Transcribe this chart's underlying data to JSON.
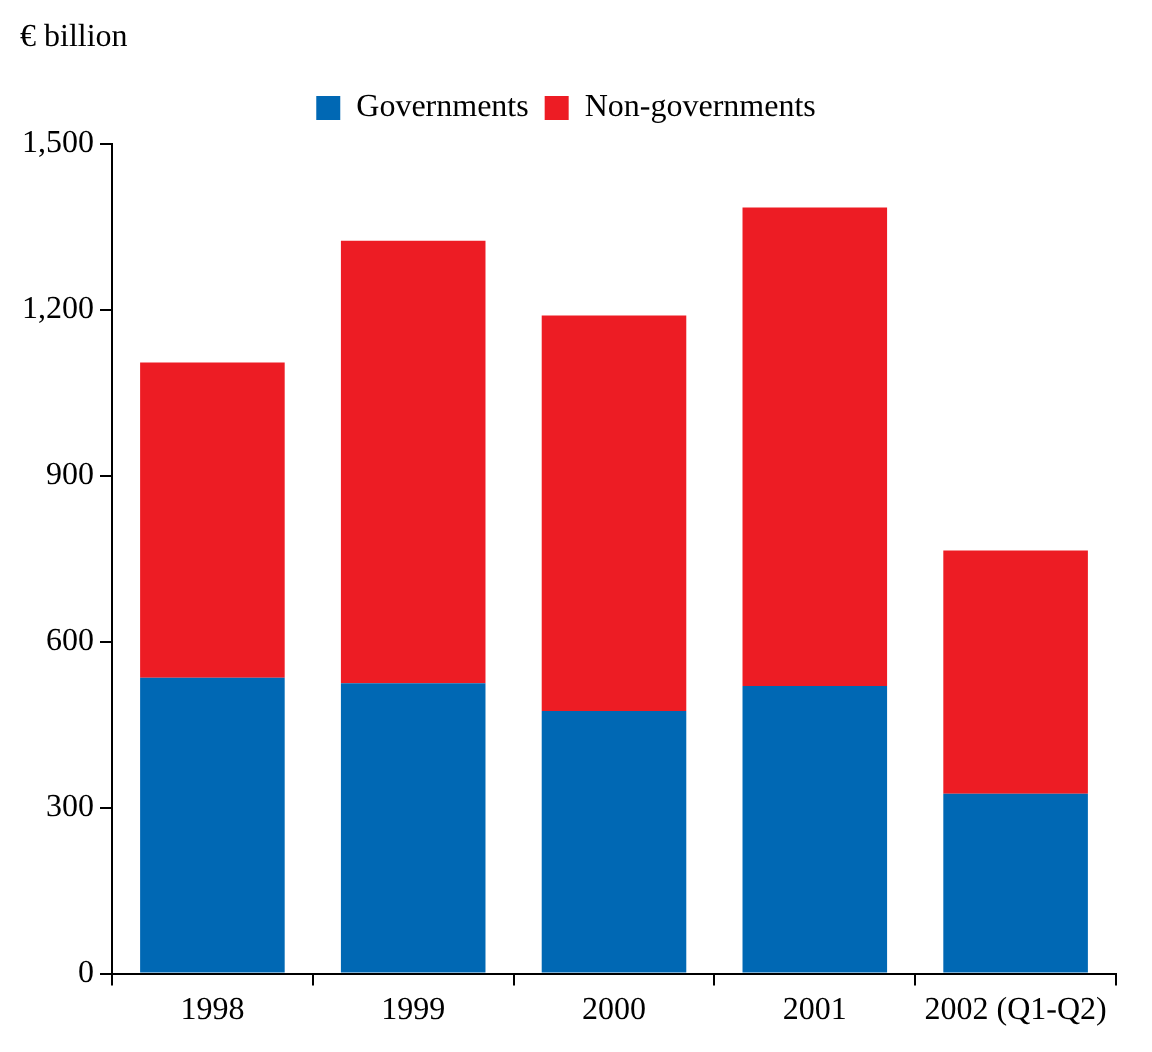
{
  "chart_data": {
    "type": "bar",
    "stacked": true,
    "ylabel": "€ billion",
    "categories": [
      "1998",
      "1999",
      "2000",
      "2001",
      "2002 (Q1-Q2)"
    ],
    "series": [
      {
        "name": "Governments",
        "color": "#0068b4",
        "values": [
          535,
          525,
          475,
          520,
          325
        ]
      },
      {
        "name": "Non-governments",
        "color": "#ed1c24",
        "values": [
          570,
          800,
          715,
          865,
          440
        ]
      }
    ],
    "ylim": [
      0,
      1500
    ],
    "yticks": [
      {
        "value": 0,
        "label": "0"
      },
      {
        "value": 300,
        "label": "300"
      },
      {
        "value": 600,
        "label": "600"
      },
      {
        "value": 900,
        "label": "900"
      },
      {
        "value": 1200,
        "label": "1,200"
      },
      {
        "value": 1500,
        "label": "1,500"
      }
    ],
    "grid": false,
    "legend": "top"
  }
}
